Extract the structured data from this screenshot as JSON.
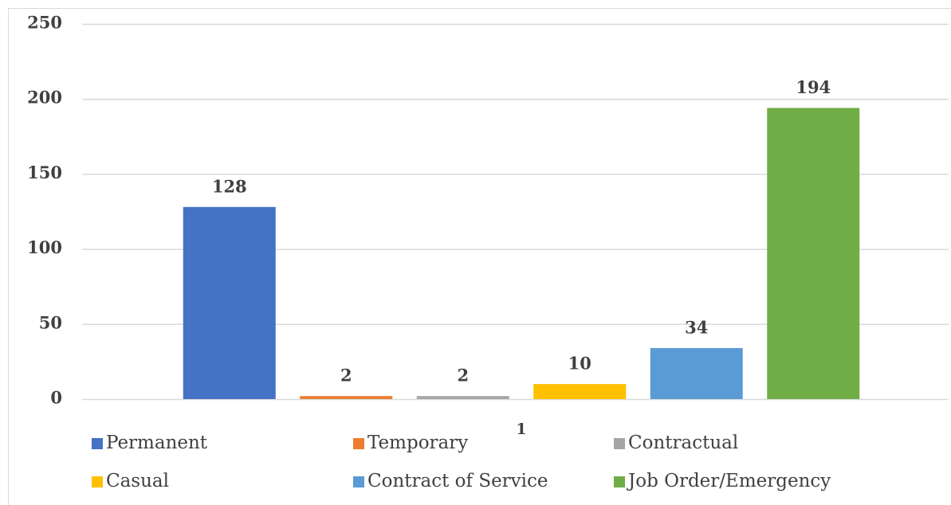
{
  "chart_data": {
    "type": "bar",
    "categories": [
      "1"
    ],
    "series": [
      {
        "name": "Permanent",
        "color": "#4472c4",
        "values": [
          128
        ]
      },
      {
        "name": "Temporary",
        "color": "#ed7d31",
        "values": [
          2
        ]
      },
      {
        "name": "Contractual",
        "color": "#a5a5a5",
        "values": [
          2
        ]
      },
      {
        "name": "Casual",
        "color": "#ffc000",
        "values": [
          10
        ]
      },
      {
        "name": "Contract of Service",
        "color": "#5b9bd5",
        "values": [
          34
        ]
      },
      {
        "name": "Job Order/Emergency",
        "color": "#70ad47",
        "values": [
          194
        ]
      }
    ],
    "ylim": [
      0,
      250
    ],
    "yticks": [
      0,
      50,
      100,
      150,
      200,
      250
    ],
    "grid": true,
    "legend": "bottom"
  }
}
